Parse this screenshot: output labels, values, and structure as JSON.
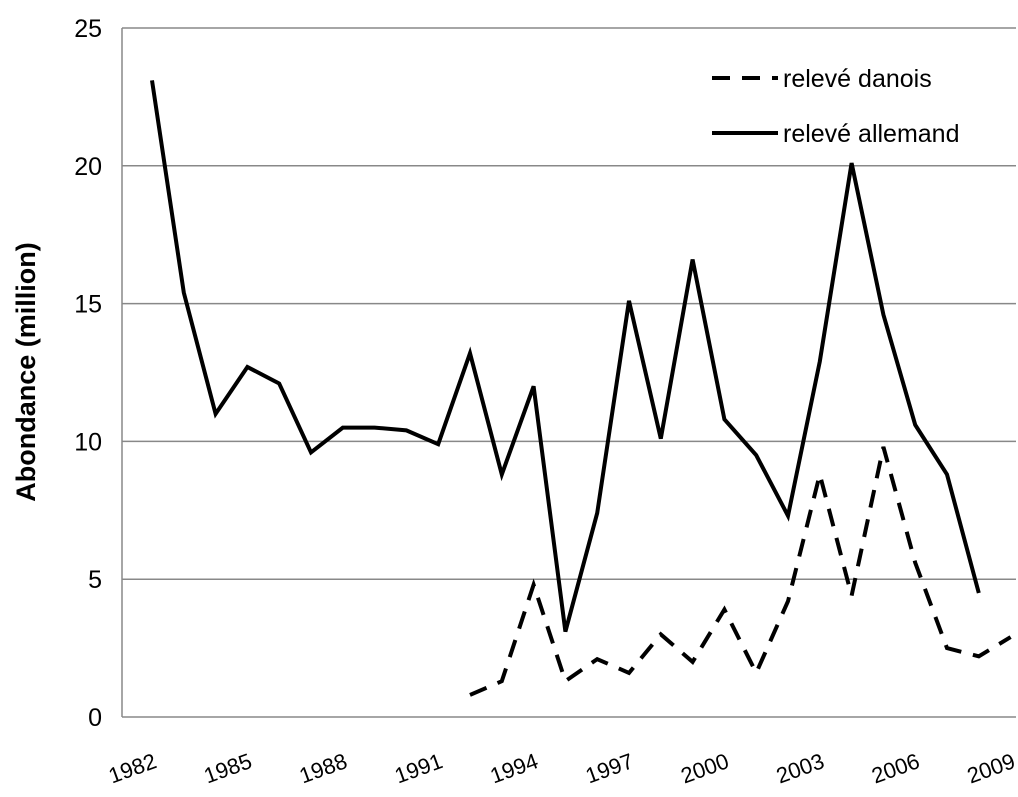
{
  "chart_data": {
    "type": "line",
    "y_label": "Abondance (million)",
    "categories": [
      "1982",
      null,
      null,
      "1985",
      null,
      null,
      "1988",
      null,
      null,
      "1991",
      null,
      null,
      "1994",
      null,
      null,
      "1997",
      null,
      null,
      "2000",
      null,
      null,
      "2003",
      null,
      null,
      "2006",
      null,
      null,
      "2009"
    ],
    "series": [
      {
        "name": "relevé danois",
        "color": "#000000",
        "dash": true,
        "values": [
          null,
          null,
          null,
          null,
          null,
          null,
          null,
          null,
          null,
          null,
          0.8,
          1.3,
          4.8,
          1.3,
          2.1,
          1.6,
          3.0,
          2.0,
          3.9,
          1.6,
          4.2,
          8.8,
          4.4,
          9.8,
          5.6,
          2.5,
          2.2,
          2.9
        ]
      },
      {
        "name": "relevé allemand",
        "color": "#000000",
        "dash": false,
        "values": [
          23.1,
          15.4,
          11.0,
          12.7,
          12.1,
          9.6,
          10.5,
          10.5,
          10.4,
          9.9,
          13.2,
          8.8,
          12.0,
          3.1,
          7.4,
          15.1,
          10.1,
          16.6,
          10.8,
          9.5,
          7.3,
          12.9,
          20.1,
          14.6,
          10.6,
          8.8,
          4.5,
          null
        ]
      }
    ],
    "ylim": [
      0,
      25
    ],
    "yticks": [
      0,
      5,
      10,
      15,
      20,
      25
    ],
    "grid": true,
    "legend": "top-right"
  }
}
